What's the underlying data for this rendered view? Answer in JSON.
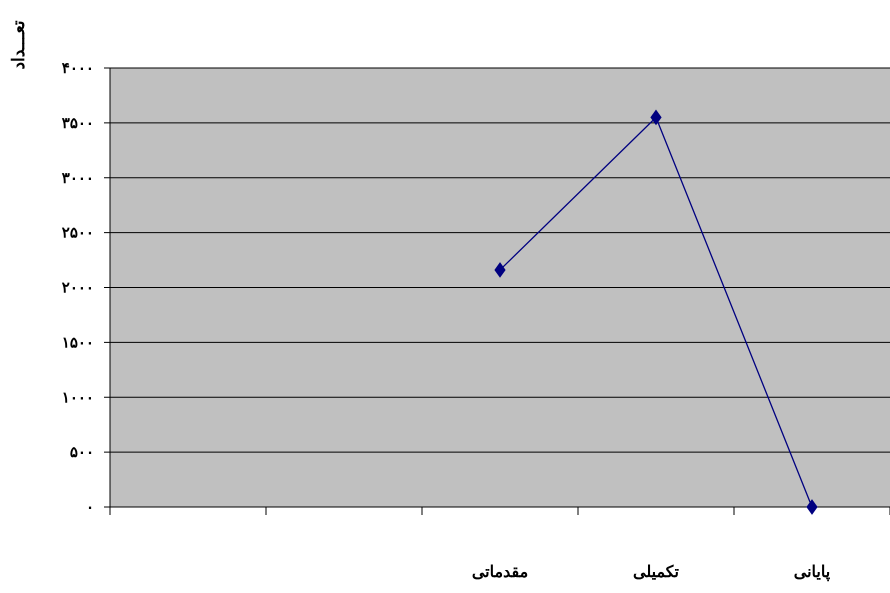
{
  "chart_data": {
    "type": "line",
    "ylabel": "تعـــداد",
    "categories": [
      "",
      "",
      "مقدماتی",
      "تکمیلی",
      "پایانی"
    ],
    "yticks": [
      "۰",
      "۵۰۰",
      "۱۰۰۰",
      "۱۵۰۰",
      "۲۰۰۰",
      "۲۵۰۰",
      "۳۰۰۰",
      "۳۵۰۰",
      "۴۰۰۰"
    ],
    "series": [
      {
        "values": [
          null,
          null,
          2160,
          3550,
          0
        ]
      }
    ],
    "ylim": [
      0,
      4000
    ],
    "grid": true,
    "colors": {
      "plot_bg": "#c0c0c0",
      "line": "#000080",
      "marker": "#000080",
      "gridline": "#000000"
    }
  }
}
